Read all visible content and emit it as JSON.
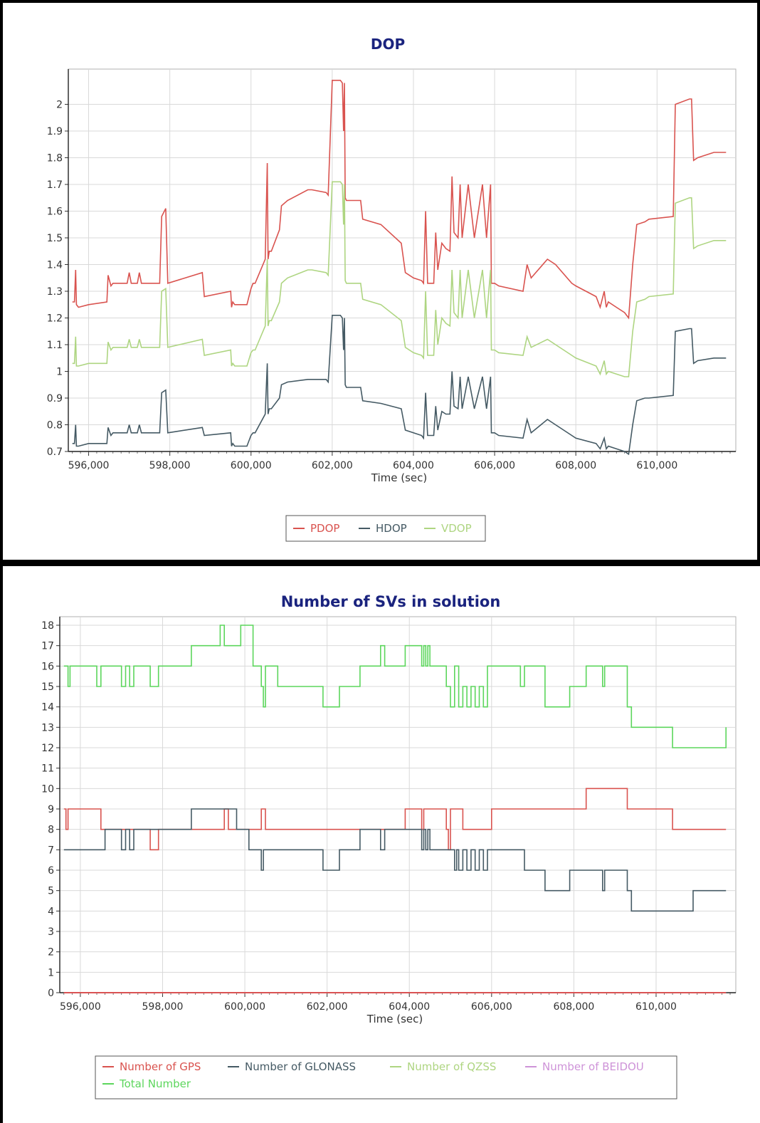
{
  "chart_data": [
    {
      "type": "line",
      "title": "DOP",
      "xlabel": "Time (sec)",
      "ylabel": "",
      "xlim": [
        595500,
        611800
      ],
      "ylim": [
        0.7,
        2.1
      ],
      "x_ticks": [
        "596,000",
        "598,000",
        "600,000",
        "602,000",
        "604,000",
        "606,000",
        "608,000",
        "610,000"
      ],
      "y_ticks": [
        "0.7",
        "0.8",
        "0.9",
        "1",
        "1.1",
        "1.2",
        "1.3",
        "1.4",
        "1.5",
        "1.6",
        "1.7",
        "1.8",
        "1.9",
        "2"
      ],
      "grid": true,
      "legend": "bottom-center",
      "series": [
        {
          "name": "PDOP",
          "color": "#d9534f",
          "x": [
            595600,
            595650,
            595680,
            595700,
            595750,
            596000,
            596450,
            596480,
            596550,
            596600,
            596950,
            597000,
            597050,
            597200,
            597250,
            597300,
            597750,
            597800,
            597900,
            597950,
            598800,
            598850,
            599500,
            599520,
            599550,
            599600,
            599900,
            600000,
            600050,
            600100,
            600350,
            600400,
            600420,
            600450,
            600500,
            600700,
            600750,
            600900,
            601400,
            601500,
            601850,
            601900,
            602000,
            602200,
            602250,
            602280,
            602300,
            602320,
            602350,
            602700,
            602750,
            603200,
            603700,
            603800,
            604000,
            604200,
            604250,
            604300,
            604350,
            604500,
            604550,
            604600,
            604700,
            604800,
            604900,
            604950,
            605000,
            605100,
            605150,
            605200,
            605350,
            605500,
            605700,
            605800,
            605900,
            605920,
            605950,
            606000,
            606100,
            606700,
            606800,
            606900,
            607300,
            607500,
            607900,
            608000,
            608500,
            608600,
            608700,
            608750,
            608800,
            609000,
            609200,
            609300,
            609400,
            609500,
            609700,
            609800,
            610400,
            610450,
            610800,
            610850,
            610900,
            611000,
            611400,
            611700
          ],
          "y": [
            1.26,
            1.26,
            1.38,
            1.25,
            1.24,
            1.25,
            1.26,
            1.36,
            1.32,
            1.33,
            1.33,
            1.37,
            1.33,
            1.33,
            1.37,
            1.33,
            1.33,
            1.58,
            1.61,
            1.33,
            1.37,
            1.28,
            1.3,
            1.24,
            1.26,
            1.25,
            1.25,
            1.31,
            1.33,
            1.33,
            1.42,
            1.78,
            1.42,
            1.45,
            1.45,
            1.53,
            1.62,
            1.64,
            1.68,
            1.68,
            1.67,
            1.66,
            2.09,
            2.09,
            2.08,
            1.9,
            2.08,
            1.65,
            1.64,
            1.64,
            1.57,
            1.55,
            1.48,
            1.37,
            1.35,
            1.34,
            1.33,
            1.6,
            1.33,
            1.33,
            1.52,
            1.38,
            1.48,
            1.46,
            1.45,
            1.73,
            1.52,
            1.5,
            1.7,
            1.5,
            1.7,
            1.5,
            1.7,
            1.5,
            1.7,
            1.33,
            1.33,
            1.33,
            1.32,
            1.3,
            1.4,
            1.35,
            1.42,
            1.4,
            1.33,
            1.32,
            1.28,
            1.24,
            1.3,
            1.24,
            1.26,
            1.24,
            1.22,
            1.2,
            1.4,
            1.55,
            1.56,
            1.57,
            1.58,
            2.0,
            2.02,
            2.02,
            1.79,
            1.8,
            1.82,
            1.82
          ]
        },
        {
          "name": "HDOP",
          "color": "#455a64",
          "x": [
            595600,
            595650,
            595680,
            595700,
            595750,
            596000,
            596450,
            596480,
            596550,
            596600,
            596950,
            597000,
            597050,
            597200,
            597250,
            597300,
            597750,
            597800,
            597900,
            597950,
            598800,
            598850,
            599500,
            599520,
            599550,
            599600,
            599900,
            600000,
            600050,
            600100,
            600350,
            600400,
            600420,
            600450,
            600500,
            600700,
            600750,
            600900,
            601400,
            601500,
            601850,
            601900,
            602000,
            602200,
            602250,
            602280,
            602300,
            602320,
            602350,
            602700,
            602750,
            603200,
            603700,
            603800,
            604000,
            604200,
            604250,
            604300,
            604350,
            604500,
            604550,
            604600,
            604700,
            604800,
            604900,
            604950,
            605000,
            605100,
            605150,
            605200,
            605350,
            605500,
            605700,
            605800,
            605900,
            605920,
            605950,
            606000,
            606100,
            606700,
            606800,
            606900,
            607300,
            607500,
            607900,
            608000,
            608500,
            608600,
            608700,
            608750,
            608800,
            609000,
            609200,
            609300,
            609400,
            609500,
            609700,
            609800,
            610400,
            610450,
            610800,
            610850,
            610900,
            611000,
            611400,
            611700
          ],
          "y": [
            0.73,
            0.73,
            0.8,
            0.72,
            0.72,
            0.73,
            0.73,
            0.79,
            0.76,
            0.77,
            0.77,
            0.8,
            0.77,
            0.77,
            0.8,
            0.77,
            0.77,
            0.92,
            0.93,
            0.77,
            0.79,
            0.76,
            0.77,
            0.72,
            0.73,
            0.72,
            0.72,
            0.76,
            0.77,
            0.77,
            0.84,
            1.03,
            0.84,
            0.86,
            0.86,
            0.9,
            0.95,
            0.96,
            0.97,
            0.97,
            0.97,
            0.96,
            1.21,
            1.21,
            1.2,
            1.08,
            1.2,
            0.95,
            0.94,
            0.94,
            0.89,
            0.88,
            0.86,
            0.78,
            0.77,
            0.76,
            0.75,
            0.92,
            0.76,
            0.76,
            0.87,
            0.78,
            0.85,
            0.84,
            0.84,
            1.0,
            0.87,
            0.86,
            0.98,
            0.86,
            0.98,
            0.86,
            0.98,
            0.86,
            0.98,
            0.77,
            0.77,
            0.77,
            0.76,
            0.75,
            0.82,
            0.77,
            0.82,
            0.8,
            0.76,
            0.75,
            0.73,
            0.71,
            0.75,
            0.71,
            0.72,
            0.71,
            0.7,
            0.69,
            0.8,
            0.89,
            0.9,
            0.9,
            0.91,
            1.15,
            1.16,
            1.16,
            1.03,
            1.04,
            1.05,
            1.05
          ]
        },
        {
          "name": "VDOP",
          "color": "#aed581",
          "x": [
            595600,
            595650,
            595680,
            595700,
            595750,
            596000,
            596450,
            596480,
            596550,
            596600,
            596950,
            597000,
            597050,
            597200,
            597250,
            597300,
            597750,
            597800,
            597900,
            597950,
            598800,
            598850,
            599500,
            599520,
            599550,
            599600,
            599900,
            600000,
            600050,
            600100,
            600350,
            600400,
            600420,
            600450,
            600500,
            600700,
            600750,
            600900,
            601400,
            601500,
            601850,
            601900,
            602000,
            602200,
            602250,
            602280,
            602300,
            602320,
            602350,
            602700,
            602750,
            603200,
            603700,
            603800,
            604000,
            604200,
            604250,
            604300,
            604350,
            604500,
            604550,
            604600,
            604700,
            604800,
            604900,
            604950,
            605000,
            605100,
            605150,
            605200,
            605350,
            605500,
            605700,
            605800,
            605900,
            605920,
            605950,
            606000,
            606100,
            606700,
            606800,
            606900,
            607300,
            607500,
            607900,
            608000,
            608500,
            608600,
            608700,
            608750,
            608800,
            609000,
            609200,
            609300,
            609400,
            609500,
            609700,
            609800,
            610400,
            610450,
            610800,
            610850,
            610900,
            611000,
            611400,
            611700
          ],
          "y": [
            1.03,
            1.03,
            1.13,
            1.02,
            1.02,
            1.03,
            1.03,
            1.11,
            1.08,
            1.09,
            1.09,
            1.12,
            1.09,
            1.09,
            1.12,
            1.09,
            1.09,
            1.3,
            1.31,
            1.09,
            1.12,
            1.06,
            1.08,
            1.02,
            1.03,
            1.02,
            1.02,
            1.07,
            1.08,
            1.08,
            1.17,
            1.42,
            1.17,
            1.19,
            1.19,
            1.26,
            1.33,
            1.35,
            1.38,
            1.38,
            1.37,
            1.36,
            1.71,
            1.71,
            1.7,
            1.55,
            1.7,
            1.34,
            1.33,
            1.33,
            1.27,
            1.25,
            1.19,
            1.09,
            1.07,
            1.06,
            1.05,
            1.3,
            1.06,
            1.06,
            1.23,
            1.1,
            1.2,
            1.18,
            1.17,
            1.38,
            1.22,
            1.2,
            1.38,
            1.2,
            1.38,
            1.2,
            1.38,
            1.2,
            1.38,
            1.08,
            1.08,
            1.08,
            1.07,
            1.06,
            1.13,
            1.09,
            1.12,
            1.1,
            1.06,
            1.05,
            1.02,
            0.99,
            1.04,
            0.99,
            1.0,
            0.99,
            0.98,
            0.98,
            1.15,
            1.26,
            1.27,
            1.28,
            1.29,
            1.63,
            1.65,
            1.65,
            1.46,
            1.47,
            1.49,
            1.49
          ]
        }
      ]
    },
    {
      "type": "line",
      "title": "Number of SVs in solution",
      "xlabel": "Time (sec)",
      "ylabel": "",
      "xlim": [
        595500,
        611800
      ],
      "ylim": [
        0,
        18
      ],
      "x_ticks": [
        "596,000",
        "598,000",
        "600,000",
        "602,000",
        "604,000",
        "606,000",
        "608,000",
        "610,000"
      ],
      "y_ticks": [
        "0",
        "1",
        "2",
        "3",
        "4",
        "5",
        "6",
        "7",
        "8",
        "9",
        "10",
        "11",
        "12",
        "13",
        "14",
        "15",
        "16",
        "17",
        "18"
      ],
      "grid": true,
      "legend": "bottom-center",
      "series": [
        {
          "name": "Number of GPS",
          "color": "#d9534f",
          "step": true,
          "x": [
            595600,
            595650,
            595700,
            596500,
            597700,
            597900,
            598700,
            599500,
            599600,
            600400,
            600500,
            600800,
            603900,
            604300,
            604350,
            604900,
            604950,
            605000,
            605300,
            606000,
            608300,
            609300,
            610400,
            611700
          ],
          "y": [
            9,
            8,
            9,
            8,
            7,
            8,
            8,
            9,
            8,
            9,
            8,
            8,
            9,
            8,
            9,
            8,
            7,
            9,
            8,
            9,
            10,
            9,
            8,
            8
          ]
        },
        {
          "name": "Number of GLONASS",
          "color": "#455a64",
          "step": true,
          "x": [
            595600,
            596600,
            597000,
            597100,
            597200,
            597300,
            598700,
            599800,
            600100,
            600400,
            600450,
            601900,
            602300,
            602800,
            603300,
            603400,
            604300,
            604350,
            604400,
            604450,
            604500,
            605100,
            605150,
            605200,
            605300,
            605400,
            605500,
            605600,
            605700,
            605800,
            605900,
            606800,
            606850,
            607300,
            607900,
            608700,
            608750,
            609300,
            609400,
            610900,
            611700
          ],
          "y": [
            7,
            8,
            7,
            8,
            7,
            8,
            9,
            8,
            7,
            6,
            7,
            6,
            7,
            8,
            7,
            8,
            7,
            8,
            7,
            8,
            7,
            6,
            7,
            6,
            7,
            6,
            7,
            6,
            7,
            6,
            7,
            6,
            6,
            5,
            6,
            5,
            6,
            5,
            4,
            5,
            5
          ]
        },
        {
          "name": "Number of QZSS",
          "color": "#aed581",
          "step": true,
          "x": [
            595600,
            611700
          ],
          "y": [
            0,
            0
          ]
        },
        {
          "name": "Number of BEIDOU",
          "color": "#ce93d8",
          "step": true,
          "x": [
            595600,
            611700
          ],
          "y": [
            0,
            0
          ]
        },
        {
          "name": "Total Number",
          "color": "#5cd65c",
          "step": true,
          "x": [
            595600,
            595700,
            595750,
            596400,
            596500,
            597000,
            597100,
            597200,
            597300,
            597700,
            597900,
            598700,
            599400,
            599500,
            599900,
            600200,
            600400,
            600450,
            600500,
            600800,
            601900,
            602300,
            602800,
            603300,
            603400,
            603900,
            604300,
            604350,
            604400,
            604450,
            604500,
            604900,
            605000,
            605100,
            605200,
            605300,
            605400,
            605500,
            605600,
            605700,
            605800,
            605900,
            606700,
            606800,
            607300,
            607900,
            608300,
            608700,
            608750,
            609300,
            609400,
            610000,
            610400,
            611700
          ],
          "y": [
            16,
            15,
            16,
            15,
            16,
            15,
            16,
            15,
            16,
            15,
            16,
            17,
            18,
            17,
            18,
            16,
            15,
            14,
            16,
            15,
            14,
            15,
            16,
            17,
            16,
            17,
            16,
            17,
            16,
            17,
            16,
            15,
            14,
            16,
            14,
            15,
            14,
            15,
            14,
            15,
            14,
            16,
            15,
            16,
            14,
            15,
            16,
            15,
            16,
            14,
            13,
            13,
            12,
            13
          ]
        },
        {
          "name": "",
          "color": "#e53935",
          "step": true,
          "x": [
            595600,
            611700
          ],
          "y": [
            0,
            0
          ]
        }
      ]
    }
  ],
  "legend1": {
    "pdop": "PDOP",
    "hdop": "HDOP",
    "vdop": "VDOP"
  },
  "legend2": {
    "gps": "Number of GPS",
    "glonass": "Number of GLONASS",
    "qzss": "Number of QZSS",
    "beidou": "Number of BEIDOU",
    "total": "Total Number"
  }
}
